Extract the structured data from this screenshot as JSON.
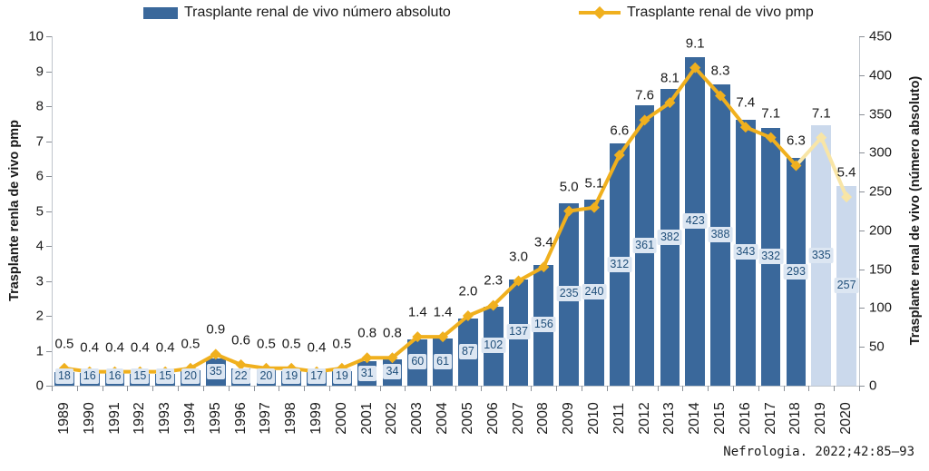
{
  "legend": {
    "bar_label": "Trasplante renal de vivo número absoluto",
    "line_label": "Trasplante renal de vivo pmp"
  },
  "left_axis": {
    "title": "Trasplante renla de vivo pmp",
    "min": 0,
    "max": 10,
    "step": 1
  },
  "right_axis": {
    "title": "Trasplante renal de vivo (número absoluto)",
    "min": 0,
    "max": 450,
    "step": 50
  },
  "citation": "Nefrologia. 2022;42:85–93",
  "colors": {
    "bar": "#3a689b",
    "bar_muted": "#cbd9ec",
    "bar_label_bg": "#dce6f2",
    "bar_label_text": "#1f4e79",
    "line": "#f0b01e",
    "line_muted": "#f8e5a6",
    "axis_line": "#bfc5cc",
    "tick": "#8a8f96",
    "text": "#1a1a1a"
  },
  "chart_data": {
    "type": "bar+line combo",
    "title": "",
    "categories": [
      "1989",
      "1990",
      "1991",
      "1992",
      "1993",
      "1994",
      "1995",
      "1996",
      "1997",
      "1998",
      "1999",
      "2000",
      "2001",
      "2002",
      "2003",
      "2004",
      "2005",
      "2006",
      "2007",
      "2008",
      "2009",
      "2010",
      "2011",
      "2012",
      "2013",
      "2014",
      "2015",
      "2016",
      "2017",
      "2018",
      "2019",
      "2020"
    ],
    "series": [
      {
        "name": "Trasplante renal de vivo número absoluto",
        "type": "bar",
        "axis": "right",
        "values": [
          18,
          16,
          16,
          15,
          15,
          20,
          35,
          22,
          20,
          19,
          17,
          19,
          31,
          34,
          60,
          61,
          87,
          102,
          137,
          156,
          235,
          240,
          312,
          361,
          382,
          423,
          388,
          343,
          332,
          293,
          335,
          257
        ]
      },
      {
        "name": "Trasplante renal de vivo pmp",
        "type": "line",
        "axis": "left",
        "values": [
          0.5,
          0.4,
          0.4,
          0.4,
          0.4,
          0.5,
          0.9,
          0.6,
          0.5,
          0.5,
          0.4,
          0.5,
          0.8,
          0.8,
          1.4,
          1.4,
          2.0,
          2.3,
          3.0,
          3.4,
          5.0,
          5.1,
          6.6,
          7.6,
          8.1,
          9.1,
          8.3,
          7.4,
          7.1,
          6.3,
          7.1,
          5.4
        ]
      }
    ],
    "muted_from_index": 30,
    "left_ylim": [
      0,
      10
    ],
    "right_ylim": [
      0,
      450
    ],
    "grid": false,
    "legend_position": "top",
    "pmp_label_decimals": 1
  }
}
